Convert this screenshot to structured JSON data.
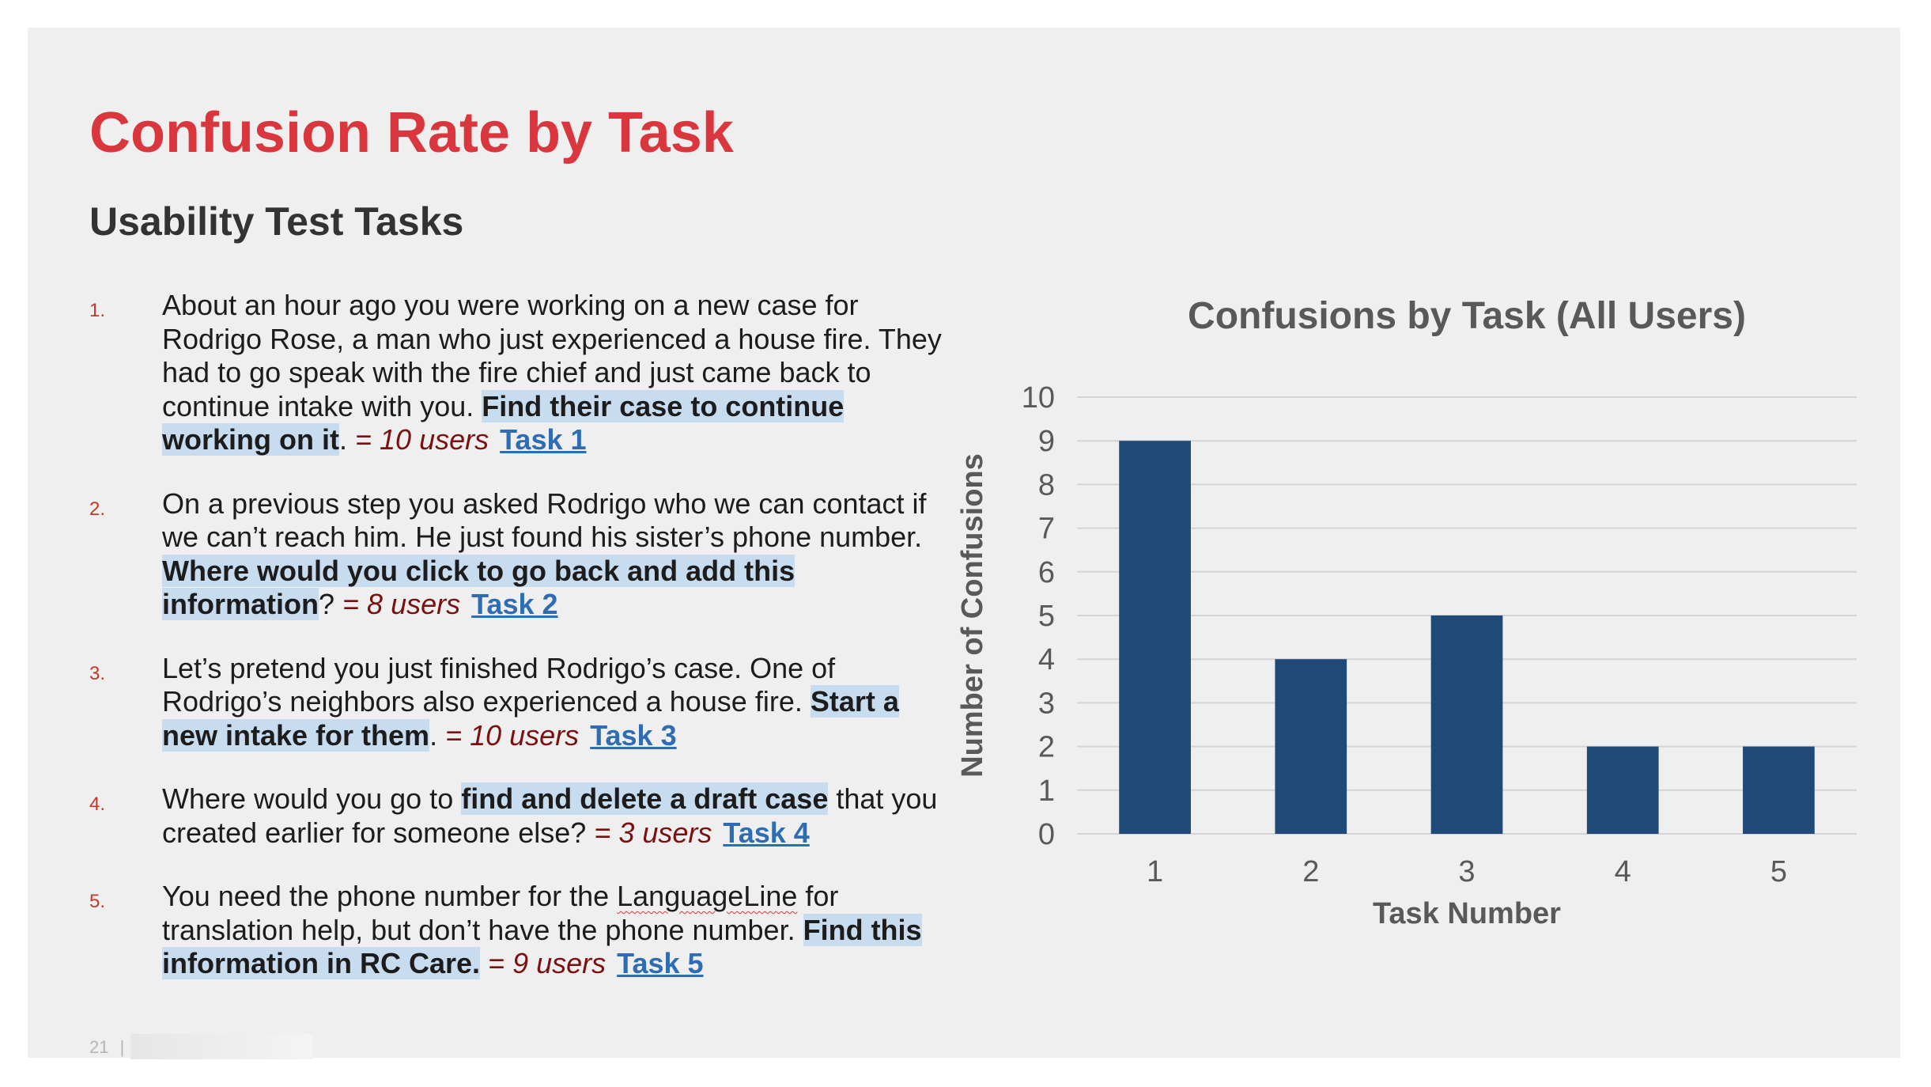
{
  "slide": {
    "title": "Confusion Rate by Task",
    "subtitle": "Usability Test Tasks",
    "page_number": "21",
    "footer_separator": "|"
  },
  "tasks": [
    {
      "number": "1.",
      "segments": [
        {
          "text": "About an hour ago you were working on a new case for Rodrigo Rose, a man who just experienced a house fire. They had to go speak with the fire chief and just came back to continue intake with you. ",
          "style": "plain"
        },
        {
          "text": "Find their case to continue working on it",
          "style": "highlight"
        },
        {
          "text": ". ",
          "style": "plain"
        },
        {
          "text": "= 10 users",
          "style": "users"
        },
        {
          "text": "Task 1",
          "style": "link"
        }
      ]
    },
    {
      "number": "2.",
      "segments": [
        {
          "text": "On a previous step you asked Rodrigo who we can contact if we can’t reach him. He just found his sister’s phone number. ",
          "style": "plain"
        },
        {
          "text": "Where would you click to go back and add this information",
          "style": "highlight"
        },
        {
          "text": "? ",
          "style": "plain"
        },
        {
          "text": "= 8 users",
          "style": "users"
        },
        {
          "text": "Task 2",
          "style": "link"
        }
      ]
    },
    {
      "number": "3.",
      "segments": [
        {
          "text": "Let’s pretend you just finished Rodrigo’s case. One of Rodrigo’s neighbors also experienced a house fire. ",
          "style": "plain"
        },
        {
          "text": "Start a new intake for them",
          "style": "highlight"
        },
        {
          "text": ". ",
          "style": "plain"
        },
        {
          "text": "= 10 users",
          "style": "users"
        },
        {
          "text": "Task 3",
          "style": "link"
        }
      ]
    },
    {
      "number": "4.",
      "segments": [
        {
          "text": "Where would you go to ",
          "style": "plain"
        },
        {
          "text": "find and delete a draft case",
          "style": "highlight"
        },
        {
          "text": " that you created earlier for someone else? ",
          "style": "plain"
        },
        {
          "text": "= 3 users",
          "style": "users"
        },
        {
          "text": "Task 4",
          "style": "link"
        }
      ]
    },
    {
      "number": "5.",
      "segments": [
        {
          "text": "You need the phone number for the ",
          "style": "plain"
        },
        {
          "text": "LanguageLine",
          "style": "squiggle"
        },
        {
          "text": " for translation help, but don’t have the phone number. ",
          "style": "plain"
        },
        {
          "text": "Find this information in RC Care.",
          "style": "highlight"
        },
        {
          "text": " ",
          "style": "plain"
        },
        {
          "text": "= 9 users",
          "style": "users"
        },
        {
          "text": "Task 5",
          "style": "link"
        }
      ]
    }
  ],
  "chart_data": {
    "type": "bar",
    "title": "Confusions by Task (All Users)",
    "xlabel": "Task Number",
    "ylabel": "Number of Confusions",
    "categories": [
      "1",
      "2",
      "3",
      "4",
      "5"
    ],
    "values": [
      9,
      4,
      5,
      2,
      2
    ],
    "ylim": [
      0,
      10
    ],
    "yticks": [
      "0",
      "1",
      "2",
      "3",
      "4",
      "5",
      "6",
      "7",
      "8",
      "9",
      "10"
    ],
    "grid": true,
    "legend": "none",
    "colors": {
      "bar": "#1f4a78",
      "grid": "#d4d4d4",
      "axis_text": "#595959",
      "title_text": "#595959"
    }
  }
}
